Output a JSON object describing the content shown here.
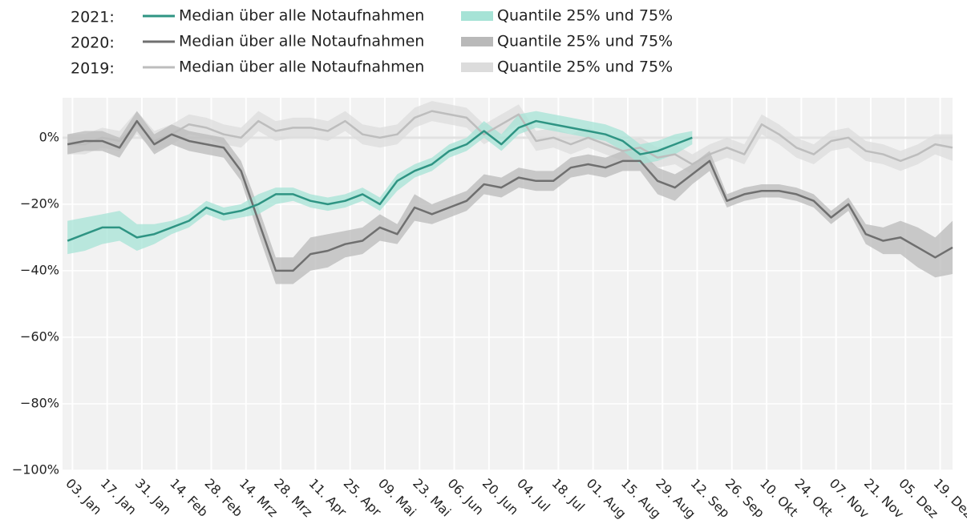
{
  "chart_data": {
    "type": "band-line",
    "x": [
      1,
      8,
      15,
      22,
      29,
      36,
      43,
      50,
      57,
      64,
      71,
      78,
      85,
      92,
      99,
      106,
      113,
      120,
      127,
      134,
      141,
      148,
      155,
      162,
      169,
      176,
      183,
      190,
      197,
      204,
      211,
      218,
      225,
      232,
      239,
      246,
      253,
      260,
      267,
      274,
      281,
      288,
      295,
      302,
      309,
      316,
      323,
      330,
      337,
      344,
      351,
      358
    ],
    "xlim": [
      -1,
      358
    ],
    "xticks": [
      {
        "value": 3,
        "label": "03. Jan"
      },
      {
        "value": 17,
        "label": "17. Jan"
      },
      {
        "value": 31,
        "label": "31. Jan"
      },
      {
        "value": 45,
        "label": "14. Feb"
      },
      {
        "value": 59,
        "label": "28. Feb"
      },
      {
        "value": 73,
        "label": "14. Mrz"
      },
      {
        "value": 87,
        "label": "28. Mrz"
      },
      {
        "value": 101,
        "label": "11. Apr"
      },
      {
        "value": 115,
        "label": "25. Apr"
      },
      {
        "value": 129,
        "label": "09. Mai"
      },
      {
        "value": 143,
        "label": "23. Mai"
      },
      {
        "value": 157,
        "label": "06. Jun"
      },
      {
        "value": 171,
        "label": "20. Jun"
      },
      {
        "value": 185,
        "label": "04. Jul"
      },
      {
        "value": 199,
        "label": "18. Jul"
      },
      {
        "value": 213,
        "label": "01. Aug"
      },
      {
        "value": 227,
        "label": "15. Aug"
      },
      {
        "value": 241,
        "label": "29. Aug"
      },
      {
        "value": 255,
        "label": "12. Sep"
      },
      {
        "value": 269,
        "label": "26. Sep"
      },
      {
        "value": 283,
        "label": "10. Okt"
      },
      {
        "value": 297,
        "label": "24. Okt"
      },
      {
        "value": 311,
        "label": "07. Nov"
      },
      {
        "value": 325,
        "label": "21. Nov"
      },
      {
        "value": 339,
        "label": "05. Dez"
      },
      {
        "value": 353,
        "label": "19. Dez"
      }
    ],
    "ylim": [
      -100,
      12
    ],
    "yticks": [
      {
        "value": -100,
        "label": "−100%"
      },
      {
        "value": -80,
        "label": "−80%"
      },
      {
        "value": -60,
        "label": "−60%"
      },
      {
        "value": -40,
        "label": "−40%"
      },
      {
        "value": -20,
        "label": "−20%"
      },
      {
        "value": 0,
        "label": "0%"
      }
    ],
    "grid": true,
    "series": [
      {
        "label": "2021:",
        "name": "Median über alle Notaufnahmen",
        "color": "#2e9483",
        "band_name": "Quantile 25% und 75%",
        "band_color": "#a6e3d6",
        "values": [
          -31,
          -29,
          -27,
          -27,
          -30,
          -29,
          -27,
          -25,
          -21,
          -23,
          -22,
          -20,
          -17,
          -17,
          -19,
          -20,
          -19,
          -17,
          -20,
          -13,
          -10,
          -8,
          -4,
          -2,
          2,
          -2,
          3,
          5,
          4,
          3,
          2,
          1,
          -1,
          -5,
          -4,
          -2,
          0,
          null,
          null,
          null,
          null,
          null,
          null,
          null,
          null,
          null,
          null,
          null,
          null,
          null,
          null,
          null
        ],
        "lower": [
          -35,
          -34,
          -32,
          -31,
          -34,
          -32,
          -29,
          -27,
          -23,
          -25,
          -24,
          -23,
          -20,
          -19,
          -21,
          -22,
          -21,
          -19,
          -22,
          -16,
          -12,
          -10,
          -6,
          -4,
          0,
          -4,
          1,
          3,
          2,
          1,
          0,
          -1,
          -4,
          -8,
          -7,
          -5,
          -2,
          null,
          null,
          null,
          null,
          null,
          null,
          null,
          null,
          null,
          null,
          null,
          null,
          null,
          null,
          null
        ],
        "upper": [
          -25,
          -24,
          -23,
          -22,
          -26,
          -26,
          -25,
          -23,
          -19,
          -21,
          -20,
          -17,
          -15,
          -15,
          -17,
          -18,
          -17,
          -15,
          -18,
          -11,
          -8,
          -6,
          -2,
          0,
          5,
          1,
          7,
          8,
          7,
          6,
          5,
          4,
          2,
          -2,
          -1,
          1,
          2,
          null,
          null,
          null,
          null,
          null,
          null,
          null,
          null,
          null,
          null,
          null,
          null,
          null,
          null,
          null
        ]
      },
      {
        "label": "2020:",
        "name": "Median über alle Notaufnahmen",
        "color": "#6f6f6f",
        "band_name": "Quantile 25% und 75%",
        "band_color": "#b9b9b9",
        "values": [
          -2,
          -1,
          -1,
          -3,
          5,
          -2,
          1,
          -1,
          -2,
          -3,
          -10,
          -25,
          -40,
          -40,
          -35,
          -34,
          -32,
          -31,
          -27,
          -29,
          -21,
          -23,
          -21,
          -19,
          -14,
          -15,
          -12,
          -13,
          -13,
          -9,
          -8,
          -9,
          -7,
          -7,
          -13,
          -15,
          -11,
          -7,
          -19,
          -17,
          -16,
          -16,
          -17,
          -19,
          -24,
          -20,
          -29,
          -31,
          -30,
          -33,
          -36,
          -33
        ],
        "lower": [
          -5,
          -4,
          -4,
          -6,
          2,
          -5,
          -2,
          -4,
          -5,
          -6,
          -13,
          -29,
          -44,
          -44,
          -40,
          -39,
          -36,
          -35,
          -31,
          -32,
          -25,
          -26,
          -24,
          -22,
          -17,
          -18,
          -15,
          -16,
          -16,
          -12,
          -11,
          -12,
          -10,
          -10,
          -17,
          -19,
          -14,
          -10,
          -21,
          -19,
          -18,
          -18,
          -19,
          -21,
          -26,
          -22,
          -32,
          -35,
          -35,
          -39,
          -42,
          -41
        ],
        "upper": [
          1,
          2,
          2,
          0,
          8,
          1,
          4,
          2,
          1,
          0,
          -7,
          -21,
          -36,
          -36,
          -30,
          -29,
          -28,
          -27,
          -23,
          -26,
          -17,
          -20,
          -18,
          -16,
          -11,
          -12,
          -9,
          -10,
          -10,
          -6,
          -5,
          -6,
          -4,
          -4,
          -9,
          -11,
          -8,
          -4,
          -17,
          -15,
          -14,
          -14,
          -15,
          -17,
          -22,
          -18,
          -26,
          -27,
          -25,
          -27,
          -30,
          -25
        ]
      },
      {
        "label": "2019:",
        "name": "Median über alle Notaufnahmen",
        "color": "#bdbdbd",
        "band_name": "Quantile 25% und 75%",
        "band_color": "#dcdcdc",
        "values": [
          -2,
          -2,
          0,
          -1,
          4,
          -1,
          1,
          4,
          3,
          1,
          0,
          5,
          2,
          3,
          3,
          2,
          5,
          1,
          0,
          1,
          6,
          8,
          7,
          6,
          1,
          4,
          7,
          -1,
          0,
          -2,
          0,
          -2,
          -4,
          -3,
          -6,
          -5,
          -8,
          -5,
          -3,
          -5,
          4,
          1,
          -3,
          -5,
          -1,
          0,
          -4,
          -5,
          -7,
          -5,
          -2,
          -3
        ],
        "lower": [
          -5,
          -5,
          -3,
          -4,
          1,
          -4,
          -2,
          1,
          0,
          -2,
          -3,
          2,
          -1,
          0,
          0,
          -1,
          2,
          -2,
          -3,
          -2,
          3,
          5,
          4,
          3,
          -2,
          1,
          4,
          -4,
          -3,
          -5,
          -3,
          -5,
          -7,
          -6,
          -9,
          -8,
          -11,
          -8,
          -6,
          -8,
          1,
          -2,
          -6,
          -8,
          -4,
          -3,
          -7,
          -8,
          -10,
          -8,
          -5,
          -7
        ],
        "upper": [
          1,
          1,
          3,
          2,
          8,
          2,
          4,
          7,
          6,
          4,
          3,
          8,
          5,
          6,
          6,
          5,
          8,
          4,
          3,
          4,
          9,
          11,
          10,
          9,
          4,
          7,
          10,
          2,
          3,
          1,
          3,
          1,
          -1,
          0,
          -3,
          -2,
          -5,
          -2,
          0,
          -2,
          7,
          4,
          0,
          -2,
          2,
          3,
          -1,
          -2,
          -4,
          -2,
          1,
          1
        ]
      }
    ]
  }
}
